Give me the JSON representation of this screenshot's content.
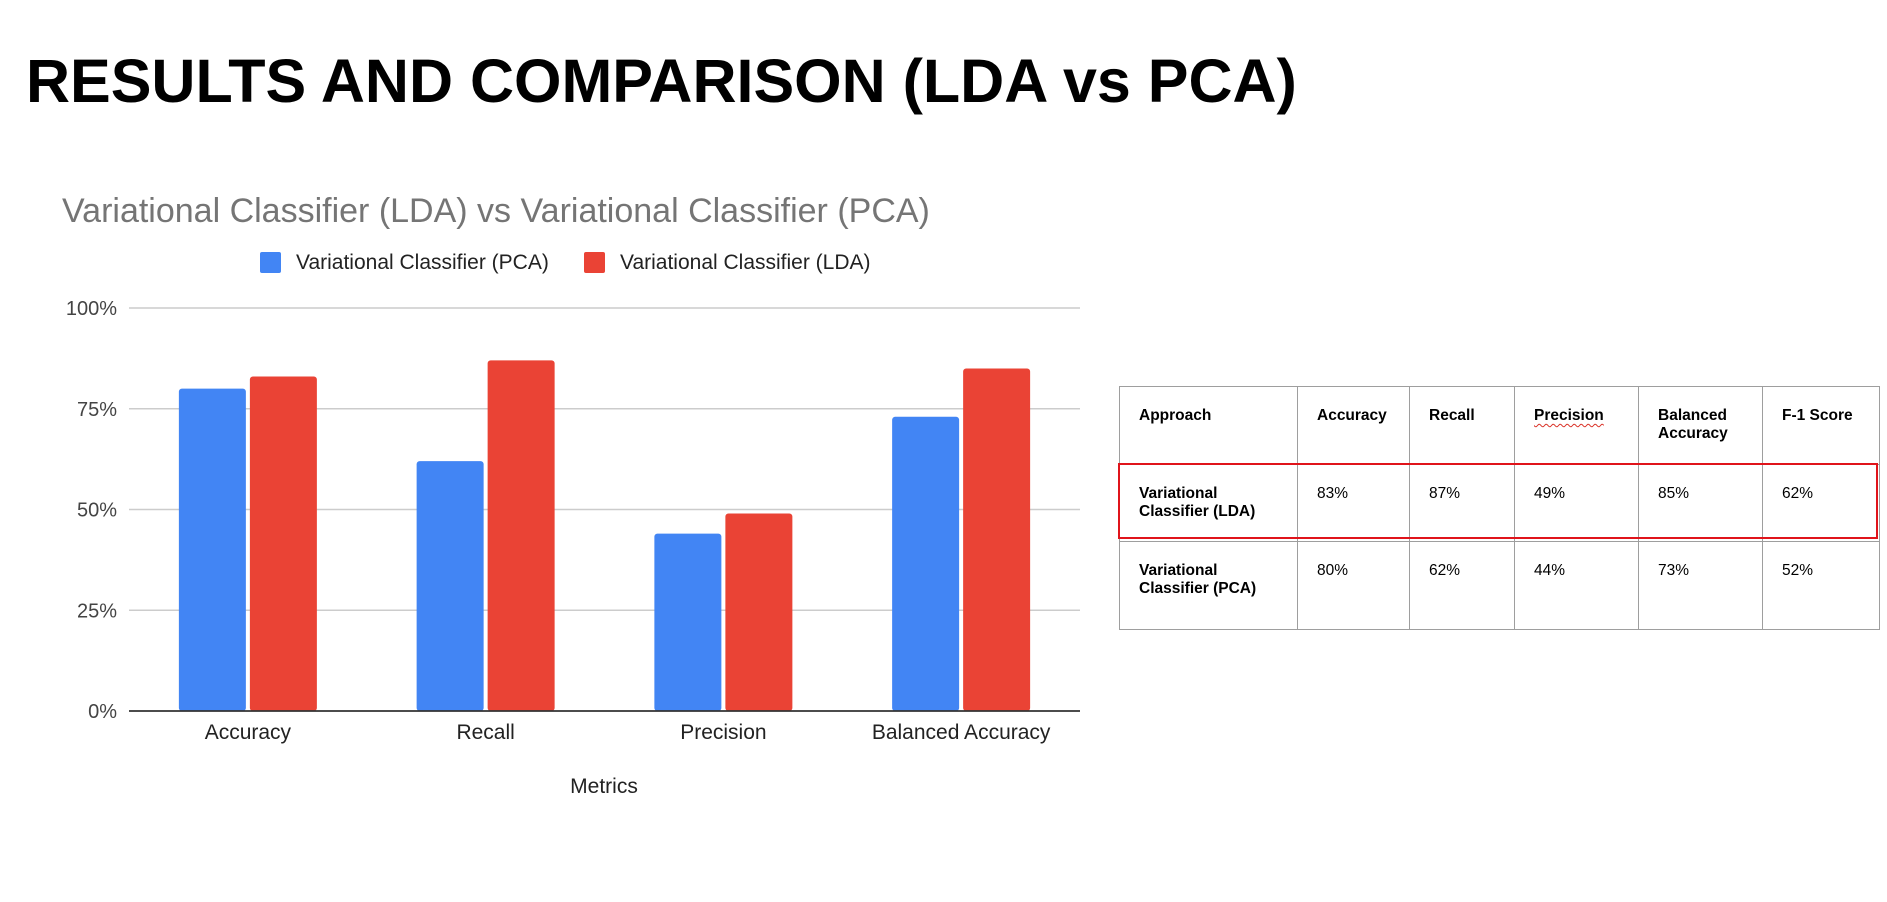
{
  "slide": {
    "title": "RESULTS AND COMPARISON (LDA vs PCA)"
  },
  "chart_data": {
    "type": "bar",
    "title": "Variational Classifier (LDA) vs Variational Classifier (PCA)",
    "xlabel": "Metrics",
    "ylabel": "",
    "categories": [
      "Accuracy",
      "Recall",
      "Precision",
      "Balanced Accuracy"
    ],
    "series": [
      {
        "name": "Variational Classifier (PCA)",
        "color": "#4285f4",
        "values": [
          80,
          62,
          44,
          73
        ]
      },
      {
        "name": "Variational Classifier (LDA)",
        "color": "#ea4335",
        "values": [
          83,
          87,
          49,
          85
        ]
      }
    ],
    "ylim": [
      0,
      100
    ],
    "yticks": [
      0,
      25,
      50,
      75,
      100
    ],
    "ytick_labels": [
      "0%",
      "25%",
      "50%",
      "75%",
      "100%"
    ],
    "grid": true,
    "legend_position": "top-center"
  },
  "table": {
    "headers": [
      "Approach",
      "Accuracy",
      "Recall",
      "Precision",
      "Balanced Accuracy",
      "F-1 Score"
    ],
    "rows": [
      {
        "approach": "Variational Classifier (LDA)",
        "accuracy": "83%",
        "recall": "87%",
        "precision": "49%",
        "balanced_accuracy": "85%",
        "f1": "62%"
      },
      {
        "approach": "Variational Classifier (PCA)",
        "accuracy": "80%",
        "recall": "62%",
        "precision": "44%",
        "balanced_accuracy": "73%",
        "f1": "52%"
      }
    ],
    "highlight_color": "#e0141b"
  },
  "colors": {
    "chart_title": "#757575",
    "axis_text": "#444444",
    "gridline": "#cccccc",
    "baseline": "#333333"
  }
}
